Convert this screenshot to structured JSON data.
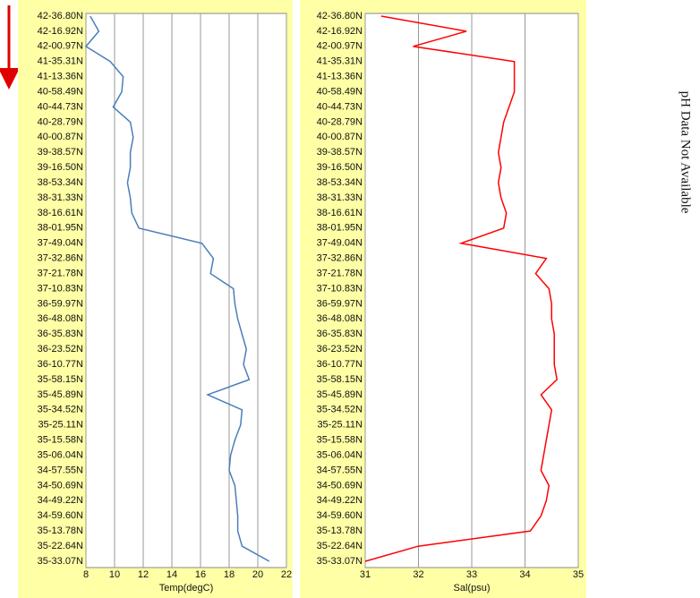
{
  "chart_data": [
    {
      "type": "line",
      "orientation": "horizontal",
      "xlabel": "Temp(degC)",
      "color": "#4a7ebb",
      "categories": [
        "42-36.80N",
        "42-16.92N",
        "42-00.97N",
        "41-35.31N",
        "41-13.36N",
        "40-58.49N",
        "40-44.73N",
        "40-28.79N",
        "40-00.87N",
        "39-38.57N",
        "39-16.50N",
        "38-53.34N",
        "38-31.33N",
        "38-16.61N",
        "38-01.95N",
        "37-49.04N",
        "37-32.86N",
        "37-21.78N",
        "37-10.83N",
        "36-59.97N",
        "36-48.08N",
        "36-35.83N",
        "36-23.52N",
        "36-10.77N",
        "35-58.15N",
        "35-45.89N",
        "35-34.52N",
        "35-25.11N",
        "35-15.58N",
        "35-06.04N",
        "34-57.55N",
        "34-50.69N",
        "34-49.22N",
        "34-59.60N",
        "35-13.78N",
        "35-22.64N",
        "35-33.07N"
      ],
      "values": [
        8.3,
        8.9,
        8.0,
        9.7,
        10.6,
        10.5,
        9.9,
        11.1,
        11.3,
        11.1,
        11.1,
        10.9,
        11.1,
        11.2,
        11.7,
        16.1,
        16.9,
        16.7,
        18.3,
        18.4,
        18.6,
        18.9,
        19.2,
        19.0,
        19.4,
        16.5,
        18.9,
        18.8,
        18.4,
        18.1,
        18.0,
        18.4,
        18.5,
        18.6,
        18.6,
        18.9,
        20.8
      ],
      "xlim": [
        8,
        22
      ],
      "xticks": [
        8,
        10,
        12,
        14,
        16,
        18,
        20,
        22
      ],
      "grid": true
    },
    {
      "type": "line",
      "orientation": "horizontal",
      "xlabel": "Sal(psu)",
      "color": "#ff0000",
      "categories": [
        "42-36.80N",
        "42-16.92N",
        "42-00.97N",
        "41-35.31N",
        "41-13.36N",
        "40-58.49N",
        "40-44.73N",
        "40-28.79N",
        "40-00.87N",
        "39-38.57N",
        "39-16.50N",
        "38-53.34N",
        "38-31.33N",
        "38-16.61N",
        "38-01.95N",
        "37-49.04N",
        "37-32.86N",
        "37-21.78N",
        "37-10.83N",
        "36-59.97N",
        "36-48.08N",
        "36-35.83N",
        "36-23.52N",
        "36-10.77N",
        "35-58.15N",
        "35-45.89N",
        "35-34.52N",
        "35-25.11N",
        "35-15.58N",
        "35-06.04N",
        "34-57.55N",
        "34-50.69N",
        "34-49.22N",
        "34-59.60N",
        "35-13.78N",
        "35-22.64N",
        "35-33.07N"
      ],
      "values": [
        31.3,
        32.9,
        31.9,
        33.8,
        33.8,
        33.8,
        33.7,
        33.6,
        33.55,
        33.5,
        33.55,
        33.5,
        33.55,
        33.65,
        33.6,
        32.8,
        34.4,
        34.2,
        34.45,
        34.5,
        34.5,
        34.55,
        34.55,
        34.55,
        34.6,
        34.3,
        34.5,
        34.45,
        34.4,
        34.35,
        34.3,
        34.45,
        34.4,
        34.3,
        34.1,
        32.0,
        31.0
      ],
      "xlim": [
        31,
        35
      ],
      "xticks": [
        31,
        32,
        33,
        34,
        35
      ],
      "grid": true
    }
  ],
  "note": "pH Data Not Available"
}
